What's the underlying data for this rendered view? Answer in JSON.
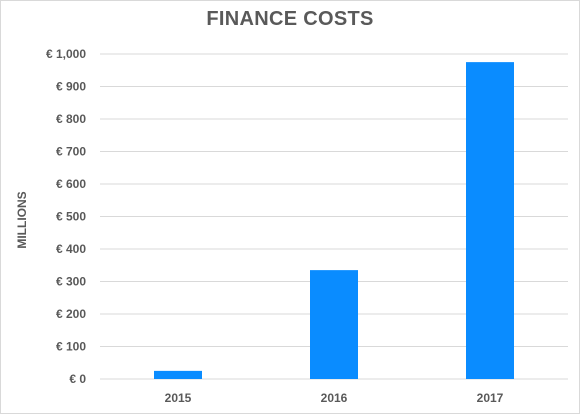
{
  "chart_data": {
    "type": "bar",
    "title": "FINANCE COSTS",
    "ylabel": "MILLIONS",
    "xlabel": "",
    "categories": [
      "2015",
      "2016",
      "2017"
    ],
    "values": [
      25,
      335,
      975
    ],
    "ylim": [
      0,
      1000
    ],
    "yticks": [
      0,
      100,
      200,
      300,
      400,
      500,
      600,
      700,
      800,
      900,
      1000
    ],
    "ytick_labels": [
      "€ 0",
      "€ 100",
      "€ 200",
      "€ 300",
      "€ 400",
      "€ 500",
      "€ 600",
      "€ 700",
      "€ 800",
      "€ 900",
      "€ 1,000"
    ],
    "grid": true,
    "legend": "none",
    "bar_color": "#0a8cff",
    "grid_color": "#d9d9d9",
    "text_color": "#595959"
  }
}
